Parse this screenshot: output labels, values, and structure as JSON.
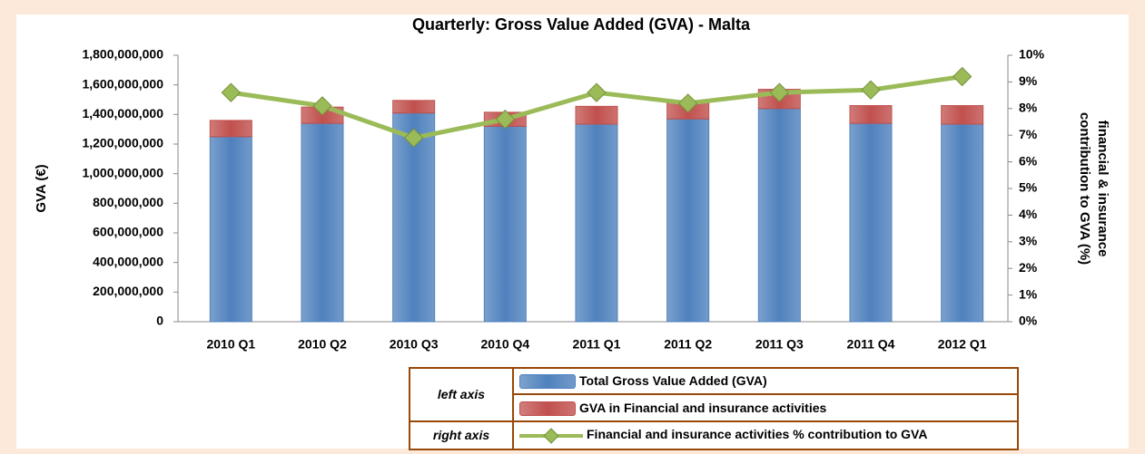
{
  "chart_data": {
    "type": "bar_line",
    "title": "Quarterly: Gross Value Added (GVA) - Malta",
    "y_label": "GVA (€)",
    "y2_label": [
      "financial & insurance",
      "contribution to GVA (%)"
    ],
    "categories": [
      "2010 Q1",
      "2010 Q2",
      "2010 Q3",
      "2010 Q4",
      "2011 Q1",
      "2011 Q2",
      "2011 Q3",
      "2011 Q4",
      "2012 Q1"
    ],
    "series": [
      {
        "name": "Total Gross Value Added (GVA)",
        "color": "#4f81bd",
        "kind": "bar",
        "values": [
          1250000000,
          1340000000,
          1410000000,
          1320000000,
          1335000000,
          1370000000,
          1440000000,
          1340000000,
          1335000000
        ]
      },
      {
        "name": "GVA in Financial and insurance activities",
        "color": "#c0504d",
        "kind": "bar",
        "values": [
          110000000,
          110000000,
          85000000,
          95000000,
          120000000,
          110000000,
          130000000,
          120000000,
          125000000
        ]
      },
      {
        "name": "Financial and insurance activities % contribution to GVA",
        "color": "#9bbb59",
        "kind": "line",
        "axis": "y2",
        "values": [
          8.6,
          8.1,
          6.9,
          7.6,
          8.6,
          8.2,
          8.6,
          8.7,
          9.2
        ]
      }
    ],
    "legend_axis_labels": [
      "left axis",
      "right axis"
    ],
    "ylim": [
      0,
      1800000000
    ],
    "yticks": [
      0,
      {
        "value": 200000000,
        "label": "200,000,000"
      },
      {
        "value": 400000000,
        "label": "400,000,000"
      },
      {
        "value": 600000000,
        "label": "600,000,000"
      },
      {
        "value": 800000000,
        "label": "800,000,000"
      },
      {
        "value": 1000000000,
        "label": "1,000,000,000"
      },
      {
        "value": 1200000000,
        "label": "1,200,000,000"
      },
      {
        "value": 1400000000,
        "label": "1,400,000,000"
      },
      {
        "value": 1600000000,
        "label": "1,600,000,000"
      },
      {
        "value": 1800000000,
        "label": "1,800,000,000"
      }
    ],
    "y2lim": [
      0,
      10
    ],
    "y2ticks": [
      {
        "value": 0,
        "label": "0%"
      },
      {
        "value": 1,
        "label": "1%"
      },
      {
        "value": 2,
        "label": "2%"
      },
      {
        "value": 3,
        "label": "3%"
      },
      {
        "value": 4,
        "label": "4%"
      },
      {
        "value": 5,
        "label": "5%"
      },
      {
        "value": 6,
        "label": "6%"
      },
      {
        "value": 7,
        "label": "7%"
      },
      {
        "value": 8,
        "label": "8%"
      },
      {
        "value": 9,
        "label": "9%"
      },
      {
        "value": 10,
        "label": "10%"
      }
    ]
  }
}
